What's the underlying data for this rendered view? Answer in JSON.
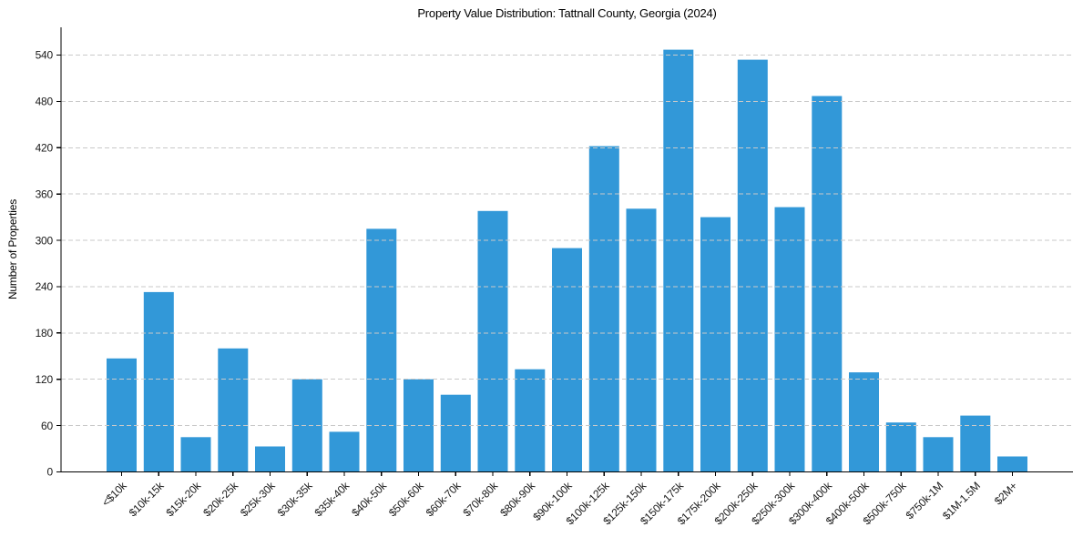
{
  "figure": {
    "title": "Property Value Distribution: Tattnall County, Georgia (2024)",
    "y_axis_label": "Number of Properties"
  },
  "chart_data": {
    "type": "bar",
    "title": "Property Value Distribution: Tattnall County, Georgia (2024)",
    "xlabel": "",
    "ylabel": "Number of Properties",
    "categories": [
      "<$10k",
      "$10k-15k",
      "$15k-20k",
      "$20k-25k",
      "$25k-30k",
      "$30k-35k",
      "$35k-40k",
      "$40k-50k",
      "$50k-60k",
      "$60k-70k",
      "$70k-80k",
      "$80k-90k",
      "$90k-100k",
      "$100k-125k",
      "$125k-150k",
      "$150k-175k",
      "$175k-200k",
      "$200k-250k",
      "$250k-300k",
      "$300k-400k",
      "$400k-500k",
      "$500k-750k",
      "$750k-1M",
      "$1M-1.5M",
      "$2M+"
    ],
    "values": [
      147,
      233,
      45,
      160,
      33,
      120,
      52,
      315,
      120,
      100,
      338,
      133,
      290,
      422,
      341,
      547,
      330,
      534,
      343,
      487,
      129,
      64,
      45,
      73,
      20
    ],
    "ylim": [
      0,
      576
    ],
    "y_ticks": [
      0,
      60,
      120,
      180,
      240,
      300,
      360,
      420,
      480,
      540
    ],
    "x_tick_rotation_deg": 45,
    "grid": {
      "axis": "y",
      "style": "dashed",
      "color": "#c9c9c9",
      "on_top_of_bars": true
    },
    "legend": "none",
    "bar_color": "#3298d8",
    "axis_color": "#000000",
    "text_color": "#1a1a1a",
    "background": "#ffffff"
  }
}
